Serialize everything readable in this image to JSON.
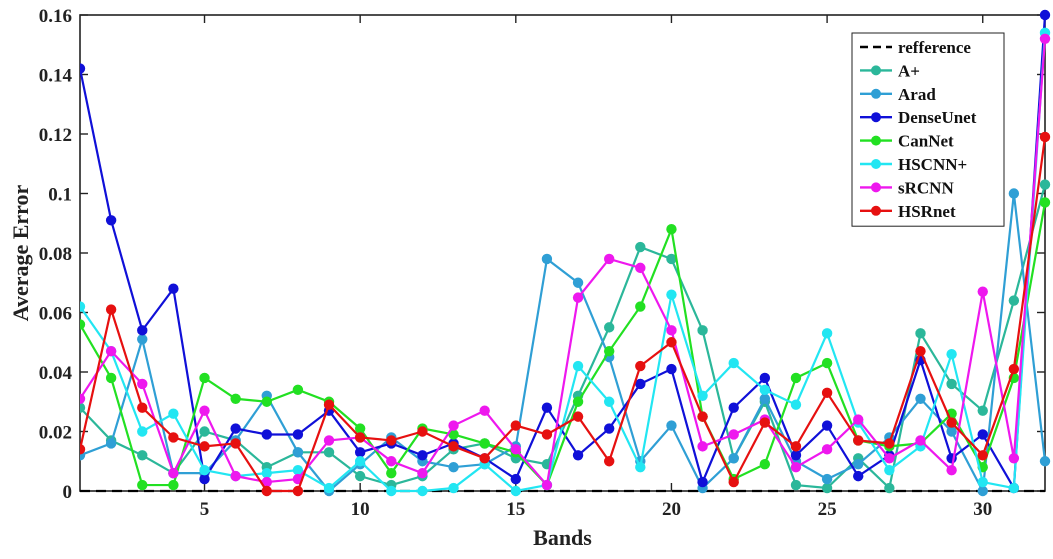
{
  "chart_data": {
    "type": "line",
    "title": "",
    "xlabel": "Bands",
    "ylabel": "Average Error",
    "xlim": [
      1,
      32
    ],
    "ylim": [
      0,
      0.16
    ],
    "xticks": [
      5,
      10,
      15,
      20,
      25,
      30
    ],
    "yticks": [
      0,
      0.02,
      0.04,
      0.06,
      0.08,
      0.1,
      0.12,
      0.14,
      0.16
    ],
    "xtick_labels": [
      "5",
      "10",
      "15",
      "20",
      "25",
      "30"
    ],
    "ytick_labels": [
      "0",
      "0.02",
      "0.04",
      "0.06",
      "0.08",
      "0.1",
      "0.12",
      "0.14",
      "0.16"
    ],
    "grid": false,
    "legend_position": "top-right",
    "x": [
      1,
      2,
      3,
      4,
      5,
      6,
      7,
      8,
      9,
      10,
      11,
      12,
      13,
      14,
      15,
      16,
      17,
      18,
      19,
      20,
      21,
      22,
      23,
      24,
      25,
      26,
      27,
      28,
      29,
      30,
      31,
      32
    ],
    "series": [
      {
        "name": "refference",
        "color": "#000000",
        "style": "dashed",
        "marker": false,
        "values": [
          0,
          0,
          0,
          0,
          0,
          0,
          0,
          0,
          0,
          0,
          0,
          0,
          0,
          0,
          0,
          0,
          0,
          0,
          0,
          0,
          0,
          0,
          0,
          0,
          0,
          0,
          0,
          0,
          0,
          0,
          0,
          0
        ]
      },
      {
        "name": "A+",
        "color": "#2bb79a",
        "style": "solid",
        "marker": true,
        "values": [
          0.028,
          0.017,
          0.012,
          0.006,
          0.02,
          0.017,
          0.008,
          0.013,
          0.013,
          0.005,
          0.002,
          0.005,
          0.014,
          0.016,
          0.011,
          0.009,
          0.032,
          0.055,
          0.082,
          0.078,
          0.054,
          0.011,
          0.03,
          0.002,
          0.001,
          0.011,
          0.001,
          0.053,
          0.036,
          0.027,
          0.064,
          0.103
        ]
      },
      {
        "name": "Arad",
        "color": "#2f9fd5",
        "style": "solid",
        "marker": true,
        "values": [
          0.012,
          0.016,
          0.051,
          0.006,
          0.006,
          0.017,
          0.032,
          0.013,
          0.0,
          0.009,
          0.018,
          0.01,
          0.008,
          0.009,
          0.015,
          0.078,
          0.07,
          0.045,
          0.01,
          0.022,
          0.001,
          0.011,
          0.031,
          0.01,
          0.004,
          0.009,
          0.018,
          0.031,
          0.02,
          0.0,
          0.1,
          0.01
        ]
      },
      {
        "name": "DenseUnet",
        "color": "#1010d8",
        "style": "solid",
        "marker": true,
        "values": [
          0.142,
          0.091,
          0.054,
          0.068,
          0.004,
          0.021,
          0.019,
          0.019,
          0.027,
          0.013,
          0.016,
          0.012,
          0.016,
          0.011,
          0.004,
          0.028,
          0.012,
          0.021,
          0.036,
          0.041,
          0.003,
          0.028,
          0.038,
          0.012,
          0.022,
          0.005,
          0.012,
          0.044,
          0.011,
          0.019,
          0.001,
          0.16
        ]
      },
      {
        "name": "CanNet",
        "color": "#22e022",
        "style": "solid",
        "marker": true,
        "values": [
          0.056,
          0.038,
          0.002,
          0.002,
          0.038,
          0.031,
          0.03,
          0.034,
          0.03,
          0.021,
          0.006,
          0.021,
          0.019,
          0.016,
          0.013,
          0.002,
          0.03,
          0.047,
          0.062,
          0.088,
          0.025,
          0.004,
          0.009,
          0.038,
          0.043,
          0.017,
          0.015,
          0.016,
          0.026,
          0.008,
          0.038,
          0.097
        ]
      },
      {
        "name": "HSCNN+",
        "color": "#22e6f2",
        "style": "solid",
        "marker": true,
        "values": [
          0.062,
          0.047,
          0.02,
          0.026,
          0.007,
          0.005,
          0.006,
          0.007,
          0.001,
          0.01,
          0.0,
          0.0,
          0.001,
          0.009,
          0.0,
          0.002,
          0.042,
          0.03,
          0.008,
          0.066,
          0.032,
          0.043,
          0.034,
          0.029,
          0.053,
          0.023,
          0.007,
          0.015,
          0.046,
          0.003,
          0.001,
          0.154
        ]
      },
      {
        "name": "sRCNN",
        "color": "#ee18ee",
        "style": "solid",
        "marker": true,
        "values": [
          0.031,
          0.047,
          0.036,
          0.006,
          0.027,
          0.005,
          0.003,
          0.004,
          0.017,
          0.018,
          0.01,
          0.006,
          0.022,
          0.027,
          0.014,
          0.002,
          0.065,
          0.078,
          0.075,
          0.054,
          0.015,
          0.019,
          0.024,
          0.008,
          0.014,
          0.024,
          0.011,
          0.017,
          0.007,
          0.067,
          0.011,
          0.152
        ]
      },
      {
        "name": "HSRnet",
        "color": "#e61010",
        "style": "solid",
        "marker": true,
        "values": [
          0.014,
          0.061,
          0.028,
          0.018,
          0.015,
          0.016,
          0.0,
          0.0,
          0.029,
          0.018,
          0.017,
          0.02,
          0.015,
          0.011,
          0.022,
          0.019,
          0.025,
          0.01,
          0.042,
          0.05,
          0.025,
          0.003,
          0.023,
          0.015,
          0.033,
          0.017,
          0.016,
          0.047,
          0.023,
          0.012,
          0.041,
          0.119
        ]
      }
    ]
  }
}
